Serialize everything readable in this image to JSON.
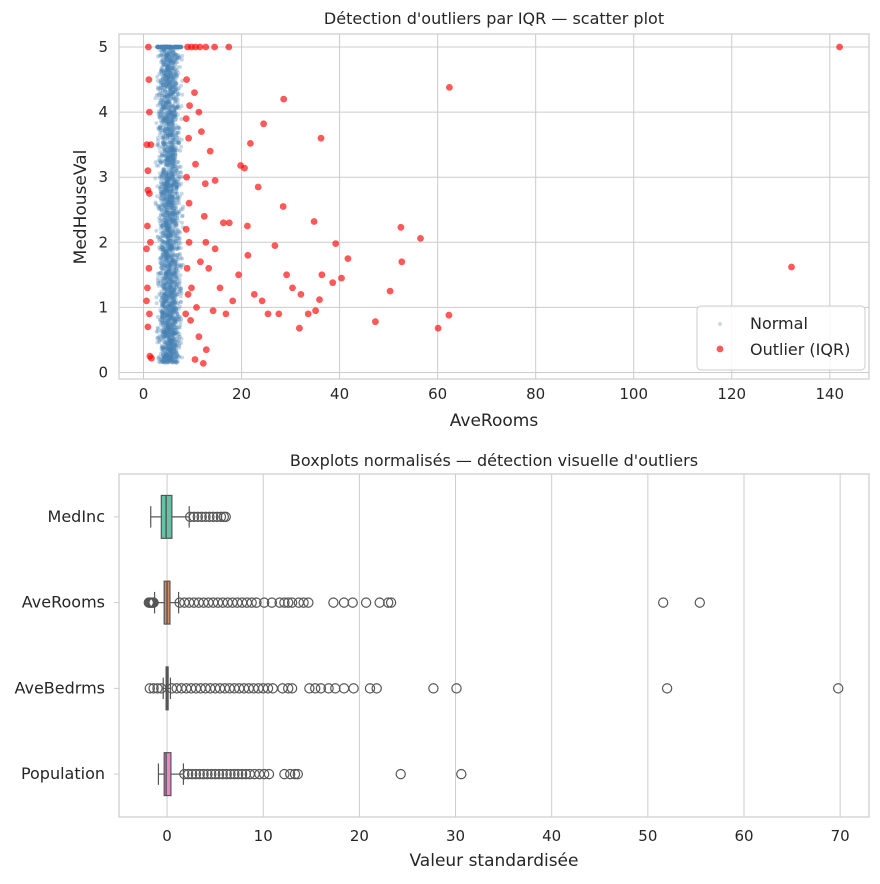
{
  "chart_data": [
    {
      "type": "scatter",
      "title": "Détection d'outliers par IQR — scatter plot",
      "xlabel": "AveRooms",
      "ylabel": "MedHouseVal",
      "xlim": [
        -5,
        148
      ],
      "ylim": [
        -0.1,
        5.2
      ],
      "xticks": [
        "0",
        "20",
        "40",
        "60",
        "80",
        "100",
        "120",
        "140"
      ],
      "yticks": [
        "0",
        "1",
        "2",
        "3",
        "4",
        "5"
      ],
      "legend_position": "bottom-right",
      "series": [
        {
          "name": "Normal",
          "color": "#4682b4",
          "x_range": [
            2,
            8.5
          ],
          "y_range": [
            0.15,
            5.0
          ]
        },
        {
          "name": "Outlier (IQR)",
          "color": "#ff0000",
          "points": [
            [
              142,
              5.0
            ],
            [
              132.2,
              1.62
            ],
            [
              62.4,
              4.38
            ],
            [
              28.6,
              4.2
            ],
            [
              24.5,
              3.82
            ],
            [
              36.2,
              3.6
            ],
            [
              21.8,
              3.52
            ],
            [
              19.8,
              3.18
            ],
            [
              20.6,
              3.14
            ],
            [
              23.4,
              2.85
            ],
            [
              28.5,
              2.55
            ],
            [
              34.8,
              2.32
            ],
            [
              52.5,
              2.23
            ],
            [
              56.5,
              2.06
            ],
            [
              52.7,
              1.7
            ],
            [
              50.3,
              1.25
            ],
            [
              47.3,
              0.78
            ],
            [
              60.1,
              0.68
            ],
            [
              62.3,
              0.88
            ],
            [
              39.2,
              1.98
            ],
            [
              41.7,
              1.75
            ],
            [
              36.4,
              1.5
            ],
            [
              38.6,
              1.38
            ],
            [
              40.4,
              1.45
            ],
            [
              35.9,
              1.12
            ],
            [
              35.1,
              0.95
            ],
            [
              33.6,
              0.9
            ],
            [
              31.8,
              0.68
            ],
            [
              27.6,
              0.9
            ],
            [
              25.4,
              0.9
            ],
            [
              21.3,
              1.8
            ],
            [
              22.6,
              1.2
            ],
            [
              19.4,
              1.5
            ],
            [
              18.2,
              1.1
            ],
            [
              16.8,
              0.9
            ],
            [
              14.2,
              0.95
            ],
            [
              15.6,
              1.3
            ],
            [
              13.3,
              1.6
            ],
            [
              12.7,
              2.0
            ],
            [
              14.6,
              1.9
            ],
            [
              16.3,
              2.3
            ],
            [
              21.2,
              2.25
            ],
            [
              26.8,
              1.95
            ],
            [
              29.2,
              1.5
            ],
            [
              30.4,
              1.3
            ],
            [
              32.1,
              1.2
            ],
            [
              24.2,
              1.1
            ],
            [
              17.5,
              2.3
            ],
            [
              12.6,
              2.9
            ],
            [
              14.6,
              2.95
            ],
            [
              13.6,
              3.4
            ],
            [
              11.8,
              3.7
            ],
            [
              10.4,
              4.3
            ],
            [
              11.3,
              4.0
            ],
            [
              17.4,
              5.0
            ],
            [
              14.5,
              5.0
            ],
            [
              12.8,
              0.35
            ],
            [
              12.2,
              0.14
            ],
            [
              10.5,
              0.2
            ],
            [
              11.3,
              0.55
            ],
            [
              9.6,
              0.8
            ],
            [
              10.8,
              1.0
            ],
            [
              9.8,
              1.3
            ],
            [
              11.6,
              1.7
            ],
            [
              12.4,
              2.4
            ],
            [
              9.3,
              2.6
            ],
            [
              10.6,
              3.2
            ],
            [
              9.2,
              3.6
            ],
            [
              9.4,
              4.1
            ],
            [
              8.8,
              4.5
            ],
            [
              9.0,
              5.0
            ],
            [
              9.8,
              5.0
            ],
            [
              10.6,
              5.0
            ],
            [
              11.5,
              5.0
            ],
            [
              12.7,
              5.0
            ],
            [
              1.0,
              5.0
            ],
            [
              1.1,
              4.5
            ],
            [
              0.7,
              3.5
            ],
            [
              0.9,
              3.1
            ],
            [
              1.2,
              2.75
            ],
            [
              0.8,
              2.25
            ],
            [
              0.6,
              1.9
            ],
            [
              1.1,
              1.6
            ],
            [
              0.8,
              1.3
            ],
            [
              0.6,
              1.1
            ],
            [
              1.2,
              0.9
            ],
            [
              0.9,
              0.7
            ],
            [
              1.3,
              0.25
            ],
            [
              1.6,
              0.22
            ],
            [
              1.4,
              2.0
            ],
            [
              1.5,
              3.5
            ],
            [
              0.9,
              2.8
            ],
            [
              1.2,
              4.0
            ],
            [
              8.7,
              2.2
            ],
            [
              8.9,
              1.6
            ],
            [
              8.6,
              0.9
            ],
            [
              9.1,
              1.2
            ],
            [
              8.8,
              3.0
            ],
            [
              8.7,
              3.9
            ],
            [
              9.3,
              2.0
            ]
          ]
        }
      ]
    },
    {
      "type": "boxplot",
      "title": "Boxplots normalisés — détection visuelle d'outliers",
      "xlabel": "Valeur standardisée",
      "xlim": [
        -5,
        73
      ],
      "xticks": [
        "0",
        "10",
        "20",
        "30",
        "40",
        "50",
        "60",
        "70"
      ],
      "series": [
        {
          "name": "MedInc",
          "color": "#66c2a5",
          "whislo": -1.7,
          "q1": -0.6,
          "median": -0.1,
          "q3": 0.5,
          "whishi": 2.3,
          "outliers_low": [],
          "outliers_high": [
            2.4,
            2.8,
            3.2,
            3.6,
            4.0,
            4.4,
            4.8,
            5.2,
            5.6,
            5.9,
            6.1
          ]
        },
        {
          "name": "AveRooms",
          "color": "#d7895d",
          "whislo": -1.3,
          "q1": -0.3,
          "median": 0.0,
          "q3": 0.3,
          "whishi": 1.2,
          "outliers_low": [
            -1.4,
            -1.5,
            -1.6,
            -1.7,
            -1.8,
            -1.9
          ],
          "outliers_high": [
            1.3,
            1.8,
            2.3,
            2.8,
            3.3,
            3.8,
            4.3,
            4.8,
            5.3,
            5.8,
            6.3,
            6.8,
            7.3,
            7.8,
            8.3,
            8.8,
            9.3,
            10.1,
            10.9,
            11.7,
            12.2,
            12.6,
            13.0,
            13.7,
            14.2,
            14.7,
            17.3,
            18.4,
            19.3,
            20.7,
            22.1,
            23.0,
            23.3,
            51.6,
            55.4
          ]
        },
        {
          "name": "AveBedrms",
          "color": "#8da0cb",
          "whislo": -0.4,
          "q1": -0.1,
          "median": 0.0,
          "q3": 0.05,
          "whishi": 0.35,
          "outliers_low": [
            -0.6,
            -1.0,
            -1.4,
            -1.8
          ],
          "outliers_high": [
            0.5,
            1.0,
            1.5,
            2.0,
            2.5,
            3.0,
            3.5,
            4.0,
            4.5,
            5.0,
            5.5,
            6.0,
            6.5,
            7.0,
            7.5,
            8.0,
            8.5,
            9.0,
            9.5,
            10.0,
            10.5,
            11.0,
            12.0,
            12.6,
            13.0,
            14.8,
            15.4,
            16.0,
            16.8,
            17.5,
            18.4,
            19.4,
            21.1,
            21.8,
            27.7,
            30.1,
            52.0,
            69.8
          ]
        },
        {
          "name": "Population",
          "color": "#e78ac3",
          "whislo": -0.9,
          "q1": -0.3,
          "median": -0.1,
          "q3": 0.4,
          "whishi": 1.7,
          "outliers_low": [],
          "outliers_high": [
            1.8,
            2.2,
            2.6,
            3.0,
            3.4,
            3.8,
            4.2,
            4.6,
            5.0,
            5.4,
            5.8,
            6.2,
            6.6,
            7.0,
            7.4,
            7.8,
            8.2,
            8.6,
            9.1,
            9.6,
            10.1,
            10.6,
            12.2,
            12.8,
            13.3,
            13.6,
            24.3,
            30.6
          ]
        }
      ]
    }
  ]
}
